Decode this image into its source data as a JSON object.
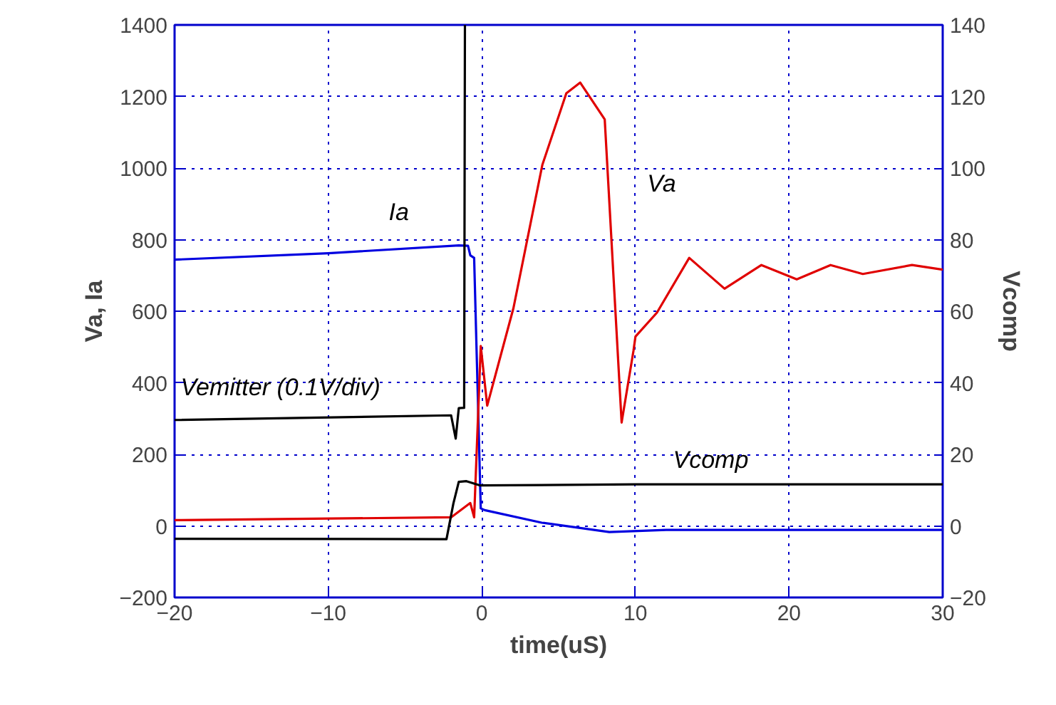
{
  "chart_data": {
    "type": "line",
    "xlabel": "time(uS)",
    "ylabel": "Va, Ia",
    "y2label": "Vcomp",
    "xlim": [
      -20,
      30
    ],
    "xticks": [
      -20,
      -10,
      0,
      10,
      20,
      30
    ],
    "ylim": [
      -200,
      1400
    ],
    "yticks": [
      -200,
      0,
      200,
      400,
      600,
      800,
      1000,
      1200,
      1400
    ],
    "y2lim": [
      -20,
      140
    ],
    "y2ticks": [
      -20,
      0,
      20,
      40,
      60,
      80,
      100,
      120,
      140
    ],
    "grid": true,
    "line_style": "solid",
    "marker": "none",
    "series": [
      {
        "name": "Ia",
        "color": "#0000e0",
        "x": [
          -20,
          -10,
          -1.5,
          -0.9,
          -0.75,
          -0.5,
          -0.07,
          0.19,
          3.9,
          8.3,
          12,
          20,
          30
        ],
        "values": [
          744,
          762,
          784,
          783,
          756,
          749,
          49,
          44,
          9,
          -17,
          -11,
          -11,
          -11
        ]
      },
      {
        "name": "Va",
        "color": "#e00000",
        "x": [
          -20,
          -2,
          -0.75,
          -0.5,
          -0.07,
          0.35,
          2.06,
          3.94,
          5.5,
          6.4,
          8.0,
          9.1,
          9.87,
          10.0,
          11.4,
          13.5,
          15.8,
          18.2,
          20.5,
          22.7,
          24.8,
          28,
          30
        ],
        "values": [
          16,
          24,
          64,
          24,
          503,
          336,
          609,
          1009,
          1209,
          1239,
          1136,
          289,
          489,
          529,
          596,
          749,
          663,
          729,
          689,
          729,
          704,
          729,
          716
        ]
      },
      {
        "name": "Vemitter (0.1V/div)",
        "color": "#000000",
        "x": [
          -20,
          -2,
          -1.7,
          -1.5,
          -1.15,
          -1.1
        ],
        "values": [
          296,
          309,
          244,
          329,
          330,
          1400
        ]
      },
      {
        "name": "Vcomp",
        "color": "#000000",
        "axis": "y2",
        "x": [
          -20,
          -2.3,
          -1.85,
          -1.5,
          -1.0,
          -0.1,
          10,
          30
        ],
        "values": [
          -3.6,
          -3.7,
          6.3,
          12.3,
          12.5,
          11.3,
          11.6,
          11.6
        ]
      }
    ]
  }
}
